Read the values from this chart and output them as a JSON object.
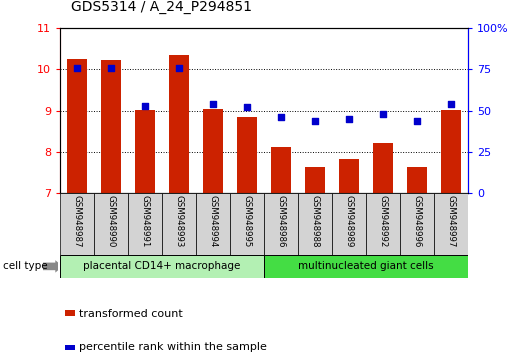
{
  "title": "GDS5314 / A_24_P294851",
  "samples": [
    "GSM948987",
    "GSM948990",
    "GSM948991",
    "GSM948993",
    "GSM948994",
    "GSM948995",
    "GSM948986",
    "GSM948988",
    "GSM948989",
    "GSM948992",
    "GSM948996",
    "GSM948997"
  ],
  "transformed_count": [
    10.26,
    10.22,
    9.02,
    10.35,
    9.03,
    8.85,
    8.12,
    7.62,
    7.82,
    8.22,
    7.62,
    9.02
  ],
  "percentile_rank": [
    76,
    76,
    53,
    76,
    54,
    52,
    46,
    44,
    45,
    48,
    44,
    54
  ],
  "cell_type_groups": [
    {
      "label": "placental CD14+ macrophage",
      "start": 0,
      "end": 6,
      "color": "#b3f0b3"
    },
    {
      "label": "multinucleated giant cells",
      "start": 6,
      "end": 12,
      "color": "#44dd44"
    }
  ],
  "ylim_left": [
    7,
    11
  ],
  "ylim_right": [
    0,
    100
  ],
  "yticks_left": [
    7,
    8,
    9,
    10,
    11
  ],
  "yticks_right": [
    0,
    25,
    50,
    75,
    100
  ],
  "bar_color": "#cc2200",
  "square_color": "#0000cc",
  "title_fontsize": 10,
  "legend_label_bar": "transformed count",
  "legend_label_square": "percentile rank within the sample",
  "cell_type_label": "cell type"
}
